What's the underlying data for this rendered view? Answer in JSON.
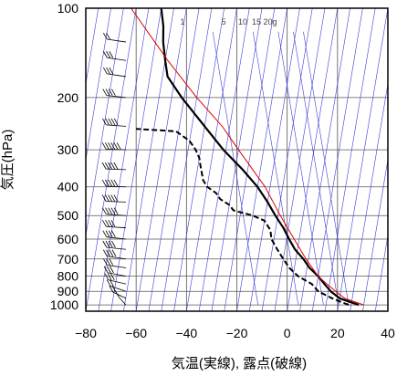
{
  "chart_data": {
    "type": "line",
    "subtype": "skew-T log-P thermodynamic diagram",
    "xlabel": "気温(実線), 露点(破線)",
    "ylabel": "気圧(hPa)",
    "xlim": [
      -80,
      40
    ],
    "ylim_pressure_hpa": [
      1050,
      100
    ],
    "y_scale": "log",
    "x_ticks": [
      -80,
      -60,
      -40,
      -20,
      0,
      20,
      40
    ],
    "y_ticks": [
      100,
      200,
      300,
      400,
      500,
      600,
      700,
      800,
      900,
      1000
    ],
    "grid": true,
    "mixing_ratio_labels": [
      "1",
      "5",
      "10",
      "15",
      "20g"
    ],
    "colors": {
      "isotherm_lines": "#3b3bd6",
      "parcel": "#e00000",
      "profiles": "#000000",
      "frame": "#000000"
    },
    "series": [
      {
        "style": "solid-thick",
        "points": [
          [
            1000,
            28
          ],
          [
            950,
            20
          ],
          [
            900,
            16
          ],
          [
            850,
            13
          ],
          [
            800,
            10
          ],
          [
            750,
            6
          ],
          [
            700,
            3
          ],
          [
            650,
            -1
          ],
          [
            600,
            -4
          ],
          [
            550,
            -7
          ],
          [
            500,
            -11
          ],
          [
            450,
            -15
          ],
          [
            400,
            -20
          ],
          [
            350,
            -27
          ],
          [
            300,
            -36
          ],
          [
            250,
            -45
          ],
          [
            200,
            -56
          ],
          [
            170,
            -63
          ],
          [
            150,
            -65
          ],
          [
            130,
            -67
          ],
          [
            115,
            -68
          ],
          [
            100,
            -70
          ]
        ]
      },
      {
        "style": "dashed-thick",
        "points": [
          [
            1000,
            24
          ],
          [
            950,
            17
          ],
          [
            900,
            11
          ],
          [
            850,
            8
          ],
          [
            800,
            2
          ],
          [
            750,
            -2
          ],
          [
            700,
            -5
          ],
          [
            650,
            -8
          ],
          [
            600,
            -11
          ],
          [
            560,
            -12
          ],
          [
            520,
            -15
          ],
          [
            500,
            -20
          ],
          [
            480,
            -28
          ],
          [
            460,
            -30
          ],
          [
            440,
            -34
          ],
          [
            420,
            -36
          ],
          [
            400,
            -40
          ],
          [
            380,
            -42
          ],
          [
            360,
            -43
          ],
          [
            340,
            -44
          ],
          [
            320,
            -45
          ],
          [
            300,
            -47
          ],
          [
            280,
            -50
          ],
          [
            260,
            -56
          ],
          [
            255,
            -72
          ]
        ]
      },
      {
        "style": "solid-thin",
        "color": "#e00000",
        "points": [
          [
            1000,
            30
          ],
          [
            950,
            22
          ],
          [
            900,
            18
          ],
          [
            850,
            14
          ],
          [
            800,
            10
          ],
          [
            700,
            4
          ],
          [
            600,
            -2
          ],
          [
            500,
            -9
          ],
          [
            400,
            -17
          ],
          [
            300,
            -30
          ],
          [
            250,
            -38
          ],
          [
            200,
            -50
          ],
          [
            150,
            -64
          ],
          [
            100,
            -82
          ]
        ]
      }
    ],
    "wind_barbs": [
      {
        "p": 1000,
        "speed_kt": 10,
        "dir": 200
      },
      {
        "p": 950,
        "speed_kt": 15,
        "dir": 220
      },
      {
        "p": 900,
        "speed_kt": 20,
        "dir": 230
      },
      {
        "p": 850,
        "speed_kt": 25,
        "dir": 240
      },
      {
        "p": 800,
        "speed_kt": 25,
        "dir": 245
      },
      {
        "p": 750,
        "speed_kt": 30,
        "dir": 250
      },
      {
        "p": 700,
        "speed_kt": 35,
        "dir": 250
      },
      {
        "p": 650,
        "speed_kt": 35,
        "dir": 255
      },
      {
        "p": 600,
        "speed_kt": 40,
        "dir": 255
      },
      {
        "p": 550,
        "speed_kt": 40,
        "dir": 260
      },
      {
        "p": 500,
        "speed_kt": 45,
        "dir": 260
      },
      {
        "p": 450,
        "speed_kt": 45,
        "dir": 265
      },
      {
        "p": 400,
        "speed_kt": 50,
        "dir": 265
      },
      {
        "p": 350,
        "speed_kt": 50,
        "dir": 265
      },
      {
        "p": 300,
        "speed_kt": 55,
        "dir": 265
      },
      {
        "p": 250,
        "speed_kt": 50,
        "dir": 260
      },
      {
        "p": 200,
        "speed_kt": 40,
        "dir": 255
      },
      {
        "p": 170,
        "speed_kt": 30,
        "dir": 250
      },
      {
        "p": 150,
        "speed_kt": 25,
        "dir": 250
      },
      {
        "p": 130,
        "speed_kt": 20,
        "dir": 250
      }
    ]
  }
}
